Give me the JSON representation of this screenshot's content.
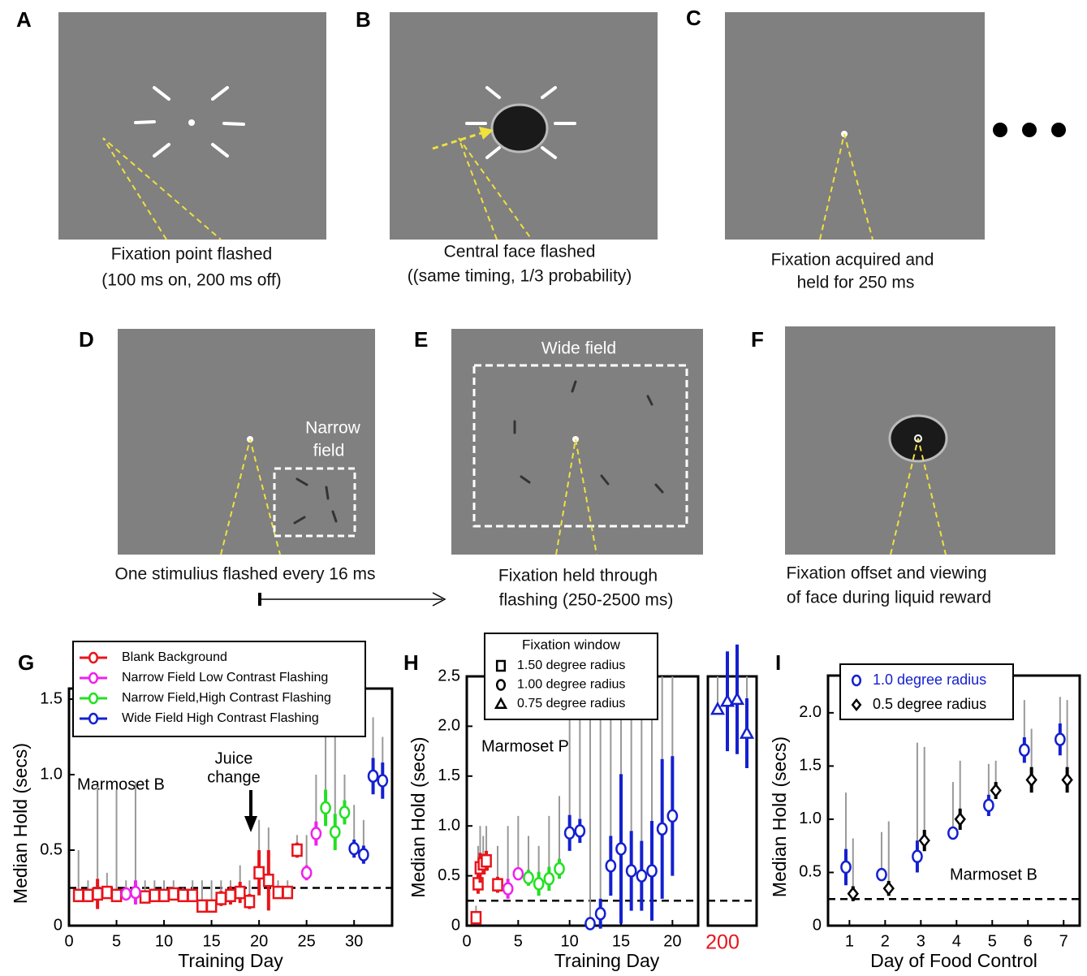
{
  "panels": {
    "A": {
      "label": "A",
      "caption": [
        "Fixation point flashed",
        "(100 ms on, 200 ms off)"
      ]
    },
    "B": {
      "label": "B",
      "caption": [
        "Central face flashed",
        "((same timing, 1/3 probability)"
      ]
    },
    "C": {
      "label": "C",
      "caption": [
        "Fixation acquired and",
        "held for  250 ms"
      ]
    },
    "D": {
      "label": "D",
      "caption": [
        "One stimulius flashed every 16 ms"
      ],
      "field": [
        "Narrow",
        "field"
      ]
    },
    "E": {
      "label": "E",
      "caption": [
        "Fixation held through",
        "flashing (250-2500 ms)"
      ],
      "field": [
        "Wide field"
      ]
    },
    "F": {
      "label": "F",
      "caption": [
        "Fixation offset and viewing",
        "of face during liquid reward"
      ]
    }
  },
  "chart_data": [
    {
      "type": "scatter",
      "label": "G",
      "xlabel": "Training Day",
      "ylabel": "Median Hold (secs)",
      "xlim": [
        0,
        34
      ],
      "ylim": [
        0,
        1.57
      ],
      "xticks": [
        0,
        5,
        10,
        15,
        20,
        25,
        30
      ],
      "yticks": [
        0,
        0.5,
        {
          "value": 1,
          "label": "1.0"
        },
        1.5
      ],
      "reference_line": 0.25,
      "annotations": [
        "Marmoset B",
        "Juice",
        "change"
      ],
      "legend": "upper left",
      "series": [
        {
          "name": "Blank Background",
          "color": "#e8141b",
          "marker": "square",
          "x": [
            1,
            2,
            3,
            4,
            5,
            8,
            9,
            10,
            11,
            12,
            13,
            14,
            15,
            16,
            17,
            18,
            19,
            20,
            21,
            22,
            23,
            24
          ],
          "values": [
            0.2,
            0.2,
            0.21,
            0.22,
            0.2,
            0.19,
            0.2,
            0.2,
            0.21,
            0.2,
            0.2,
            0.13,
            0.13,
            0.18,
            0.2,
            0.22,
            0.16,
            0.35,
            0.3,
            0.22,
            0.22,
            0.5
          ],
          "err": [
            0.04,
            0.04,
            0.1,
            0.04,
            0.04,
            0.03,
            0.03,
            0.03,
            0.03,
            0.03,
            0.03,
            0.03,
            0.03,
            0.05,
            0.06,
            0.07,
            0.05,
            0.15,
            0.2,
            0.03,
            0.03,
            0.05
          ],
          "upper": [
            0.5,
            0.3,
            0.92,
            0.35,
            0.9,
            0.3,
            0.3,
            0.3,
            0.3,
            0.25,
            0.3,
            0.3,
            0.3,
            0.3,
            0.3,
            0.4,
            0.3,
            0.7,
            0.65,
            0.3,
            0.3,
            0.6
          ]
        },
        {
          "name": "Narrow Field Low Contrast Flashing",
          "color": "#ee22ee",
          "marker": "circle",
          "x": [
            6,
            7,
            25,
            26
          ],
          "values": [
            0.21,
            0.22,
            0.35,
            0.61
          ],
          "err": [
            0.04,
            0.08,
            0.05,
            0.08
          ],
          "upper": [
            0.3,
            0.95,
            0.6,
            1.0
          ]
        },
        {
          "name": "Narrow Field,High Contrast Flashing",
          "color": "#22e022",
          "marker": "circle",
          "x": [
            27,
            28,
            29
          ],
          "values": [
            0.78,
            0.62,
            0.75
          ],
          "err": [
            0.12,
            0.12,
            0.08
          ],
          "upper": [
            1.3,
            1.3,
            1.0
          ]
        },
        {
          "name": "Wide Field High Contrast Flashing",
          "color": "#1420d0",
          "marker": "circle",
          "x": [
            30,
            31,
            32,
            33
          ],
          "values": [
            0.51,
            0.47,
            0.99,
            0.96
          ],
          "err": [
            0.06,
            0.06,
            0.12,
            0.12
          ],
          "upper": [
            0.8,
            0.7,
            1.38,
            1.25
          ]
        }
      ]
    },
    {
      "type": "scatter",
      "label": "H",
      "xlabel": "Training Day",
      "ylabel": "Median Hold (secs)",
      "xlim": [
        0,
        22.5
      ],
      "ylim": [
        0,
        2.5
      ],
      "xticks": [
        0,
        5,
        10,
        15,
        20
      ],
      "break_xlim": [
        198.5,
        203.5
      ],
      "break_xticks": [
        200
      ],
      "break_tick_color": "#e8141b",
      "yticks": [
        0,
        0.5,
        {
          "value": 1,
          "label": "1.0"
        },
        1.5,
        {
          "value": 2,
          "label": "2.0"
        },
        2.5
      ],
      "reference_line": 0.25,
      "annotations": [
        "Marmoset P"
      ],
      "legend_title": "Fixation window",
      "legend": "upper center",
      "series": [
        {
          "name": "1.50 degree radius",
          "marker": "square",
          "colors": [
            "#e8141b",
            "#e8141b",
            "#e8141b",
            "#e8141b",
            "#e8141b",
            "#e8141b"
          ],
          "x": [
            0.9,
            1.1,
            1.3,
            1.6,
            1.9,
            3
          ],
          "values": [
            0.08,
            0.42,
            0.58,
            0.62,
            0.65,
            0.41
          ],
          "err": [
            0.05,
            0.1,
            0.15,
            0.1,
            0.1,
            0.08
          ],
          "upper": [
            0.2,
            0.8,
            1.0,
            0.9,
            1.0,
            0.8
          ]
        },
        {
          "name": "1.00 degree radius",
          "marker": "circle",
          "colors": [
            "#ee22ee",
            "#ee22ee",
            "#22e022",
            "#22e022",
            "#22e022",
            "#22e022",
            "#1420d0",
            "#1420d0",
            "#1420d0",
            "#1420d0",
            "#1420d0",
            "#1420d0",
            "#1420d0",
            "#1420d0",
            "#1420d0",
            "#1420d0",
            "#1420d0"
          ],
          "x": [
            4,
            5,
            6,
            7,
            8,
            9,
            10,
            11,
            12,
            13,
            14,
            15,
            16,
            17,
            18,
            19,
            20
          ],
          "values": [
            0.37,
            0.52,
            0.48,
            0.42,
            0.47,
            0.57,
            0.93,
            0.95,
            0.02,
            0.12,
            0.6,
            0.77,
            0.55,
            0.5,
            0.55,
            0.97,
            1.1
          ],
          "err": [
            0.1,
            0.05,
            0.08,
            0.12,
            0.12,
            0.1,
            0.18,
            0.12,
            0.05,
            0.15,
            0.3,
            0.75,
            0.4,
            0.35,
            0.5,
            0.7,
            0.6
          ],
          "upper": [
            1.0,
            1.1,
            0.9,
            0.8,
            1.1,
            1.3,
            2.5,
            2.5,
            2.5,
            2.5,
            2.5,
            2.5,
            2.5,
            2.5,
            2.5,
            2.5,
            2.5
          ]
        },
        {
          "name": "0.75 degree radius",
          "marker": "triangle",
          "colors": [
            "#1420d0",
            "#1420d0",
            "#1420d0",
            "#1420d0"
          ],
          "x": [
            199.5,
            200.5,
            201.5,
            202.5
          ],
          "values": [
            2.17,
            2.25,
            2.27,
            1.93
          ],
          "err": [
            0.05,
            0.5,
            0.55,
            0.35
          ],
          "upper": [
            2.5,
            2.5,
            2.5,
            2.5
          ]
        }
      ]
    },
    {
      "type": "scatter",
      "label": "I",
      "xlabel": "Day of Food Control",
      "ylabel": "Median Hold (secs)",
      "xlim": [
        0.4,
        7.45
      ],
      "ylim": [
        0,
        2.35
      ],
      "xticks": [
        1,
        2,
        3,
        4,
        5,
        6,
        7
      ],
      "yticks": [
        0,
        0.5,
        {
          "value": 1,
          "label": "1.0"
        },
        1.5,
        {
          "value": 2,
          "label": "2.0"
        }
      ],
      "reference_line": 0.25,
      "annotations": [
        "Marmoset B"
      ],
      "legend": "upper left",
      "series": [
        {
          "name": "1.0 degree radius",
          "color": "#1420d0",
          "marker": "circle",
          "x": [
            0.9,
            1.9,
            2.9,
            3.9,
            4.9,
            5.9,
            6.9
          ],
          "values": [
            0.55,
            0.48,
            0.65,
            0.87,
            1.13,
            1.65,
            1.75
          ],
          "err": [
            0.17,
            0.05,
            0.15,
            0.04,
            0.1,
            0.12,
            0.15
          ],
          "upper": [
            1.25,
            0.88,
            1.72,
            1.35,
            1.52,
            2.12,
            2.15
          ]
        },
        {
          "name": "0.5 degree radius",
          "color": "#000000",
          "marker": "diamond",
          "x": [
            1.1,
            2.1,
            3.1,
            4.1,
            5.1,
            6.1,
            7.1
          ],
          "values": [
            0.3,
            0.35,
            0.8,
            1.0,
            1.27,
            1.37,
            1.37
          ],
          "err": [
            0.07,
            0.07,
            0.1,
            0.1,
            0.08,
            0.12,
            0.12
          ],
          "upper": [
            0.82,
            0.98,
            1.68,
            1.55,
            1.55,
            1.85,
            2.12
          ]
        }
      ]
    }
  ]
}
